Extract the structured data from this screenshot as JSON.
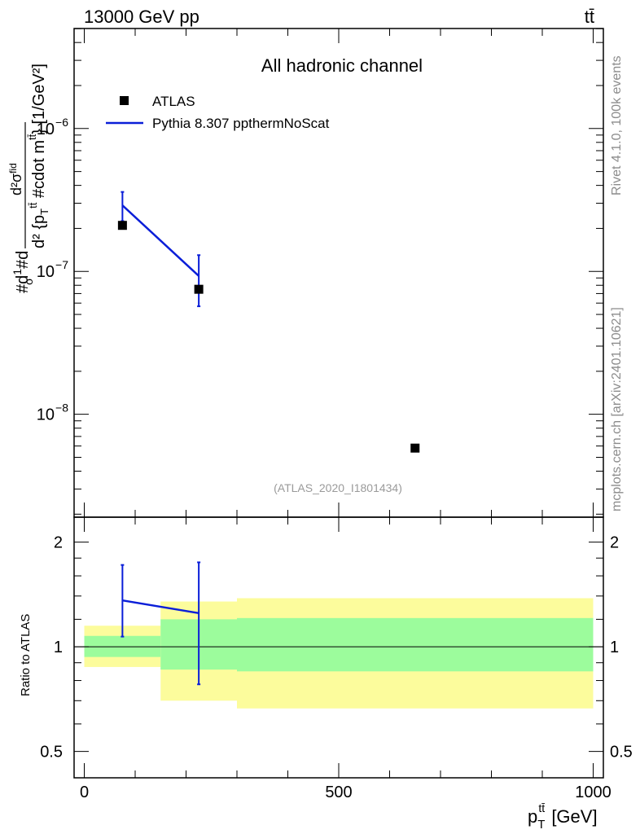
{
  "header": {
    "energy_label": "13000 GeV pp",
    "process_label": "tt̄"
  },
  "side_labels": {
    "rivet": "Rivet 4.1.0,  100k events",
    "mcplots": "mcplots.cern.ch [arXiv:2401.10621]"
  },
  "chart_data": [
    {
      "type": "scatter",
      "panel": "main",
      "title": "All hadronic channel",
      "analysis_label": "(ATLAS_2020_I1801434)",
      "ylabel": "#d̅σ #d̅ d²σ^{fid} / d² {p_T^{tt̄} #cdot m^{tt̄}} [1/GeV²]",
      "yscale": "log",
      "xlim": [
        -20,
        1020
      ],
      "ylim_log10": [
        -8.72,
        -5.3
      ],
      "y_ticks": [
        {
          "exp": -6,
          "label": "10",
          "sup": "−6"
        },
        {
          "exp": -7,
          "label": "10",
          "sup": "−7"
        },
        {
          "exp": -8,
          "label": "10",
          "sup": "−8"
        }
      ],
      "legend": [
        {
          "name": "ATLAS",
          "style": "marker"
        },
        {
          "name": "Pythia 8.307 ppthermNoScat",
          "style": "line"
        }
      ],
      "series": [
        {
          "name": "ATLAS",
          "color": "#000000",
          "points": [
            {
              "x": 75,
              "y": 2.1e-07
            },
            {
              "x": 225,
              "y": 7.5e-08
            },
            {
              "x": 650,
              "y": 5.8e-09
            }
          ]
        },
        {
          "name": "Pythia 8.307 ppthermNoScat",
          "color": "#0a1ed8",
          "points": [
            {
              "x": 75,
              "y": 2.9e-07,
              "yerr_low": 2.25e-07,
              "yerr_high": 3.6e-07
            },
            {
              "x": 225,
              "y": 9.3e-08,
              "yerr_low": 5.7e-08,
              "yerr_high": 1.3e-07
            }
          ]
        }
      ]
    },
    {
      "type": "line",
      "panel": "ratio",
      "ylabel": "Ratio to ATLAS",
      "xlabel": "p_T^{tt̄} [GeV]",
      "xlim": [
        -20,
        1020
      ],
      "ylim": [
        0.42,
        2.36
      ],
      "yscale": "log",
      "x_ticks": [
        0,
        500,
        1000
      ],
      "y_ticks": [
        0.5,
        1,
        2
      ],
      "bands": [
        {
          "x0": 0,
          "x1": 150,
          "inner": [
            0.935,
            1.075
          ],
          "outer": [
            0.875,
            1.15
          ]
        },
        {
          "x0": 150,
          "x1": 300,
          "inner": [
            0.86,
            1.2
          ],
          "outer": [
            0.7,
            1.35
          ]
        },
        {
          "x0": 300,
          "x1": 1000,
          "inner": [
            0.85,
            1.21
          ],
          "outer": [
            0.665,
            1.38
          ]
        }
      ],
      "band_colors": {
        "inner": "#9cfc9c",
        "outer": "#fcfc9c"
      },
      "series": [
        {
          "name": "Pythia 8.307 ppthermNoScat",
          "color": "#0a1ed8",
          "points": [
            {
              "x": 75,
              "y": 1.36,
              "yerr_low": 1.07,
              "yerr_high": 1.72
            },
            {
              "x": 225,
              "y": 1.25,
              "yerr_low": 0.78,
              "yerr_high": 1.75
            }
          ]
        }
      ]
    }
  ]
}
